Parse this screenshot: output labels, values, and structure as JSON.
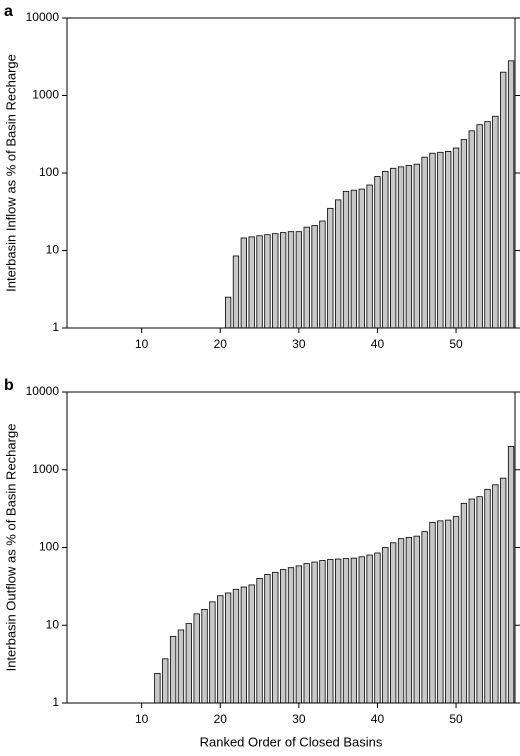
{
  "chart_data": [
    {
      "type": "bar",
      "panel": "a",
      "ylabel": "Interbasin Inflow as % of Basin Recharge",
      "log_y": true,
      "color": "#c8c8c8",
      "x": [
        21,
        22,
        23,
        24,
        25,
        26,
        27,
        28,
        29,
        30,
        31,
        32,
        33,
        34,
        35,
        36,
        37,
        38,
        39,
        40,
        41,
        42,
        43,
        44,
        45,
        46,
        47,
        48,
        49,
        50,
        51,
        52,
        53,
        54,
        55,
        56,
        57
      ],
      "values": [
        2.5,
        8.5,
        14.5,
        15,
        15.5,
        16,
        16.5,
        17,
        17.5,
        17.5,
        20,
        21,
        24,
        35,
        45,
        58,
        60,
        62,
        70,
        90,
        105,
        115,
        120,
        125,
        130,
        160,
        180,
        185,
        190,
        210,
        270,
        350,
        420,
        460,
        540,
        2000,
        2800
      ],
      "xlim": [
        0.5,
        57.5
      ],
      "xticks": [
        10,
        20,
        30,
        40,
        50
      ],
      "ylim": [
        1,
        10000
      ],
      "yticks": [
        1,
        10,
        100,
        1000,
        10000
      ]
    },
    {
      "type": "bar",
      "panel": "b",
      "ylabel": "Interbasin Outflow as % of Basin Recharge",
      "xlabel": "Ranked Order of Closed Basins",
      "log_y": true,
      "color": "#c8c8c8",
      "x": [
        12,
        13,
        14,
        15,
        16,
        17,
        18,
        19,
        20,
        21,
        22,
        23,
        24,
        25,
        26,
        27,
        28,
        29,
        30,
        31,
        32,
        33,
        34,
        35,
        36,
        37,
        38,
        39,
        40,
        41,
        42,
        43,
        44,
        45,
        46,
        47,
        48,
        49,
        50,
        51,
        52,
        53,
        54,
        55,
        56,
        57
      ],
      "values": [
        2.4,
        3.7,
        7.2,
        8.7,
        10.5,
        14,
        16,
        20,
        24,
        26,
        29,
        31,
        33,
        40,
        45,
        48,
        52,
        55,
        58,
        62,
        65,
        68,
        70,
        71,
        72,
        73,
        76,
        80,
        85,
        100,
        115,
        130,
        135,
        140,
        160,
        210,
        220,
        225,
        250,
        370,
        420,
        450,
        560,
        640,
        780,
        2000
      ],
      "xlim": [
        0.5,
        57.5
      ],
      "xticks": [
        10,
        20,
        30,
        40,
        50
      ],
      "ylim": [
        1,
        10000
      ],
      "yticks": [
        1,
        10,
        100,
        1000,
        10000
      ]
    }
  ]
}
